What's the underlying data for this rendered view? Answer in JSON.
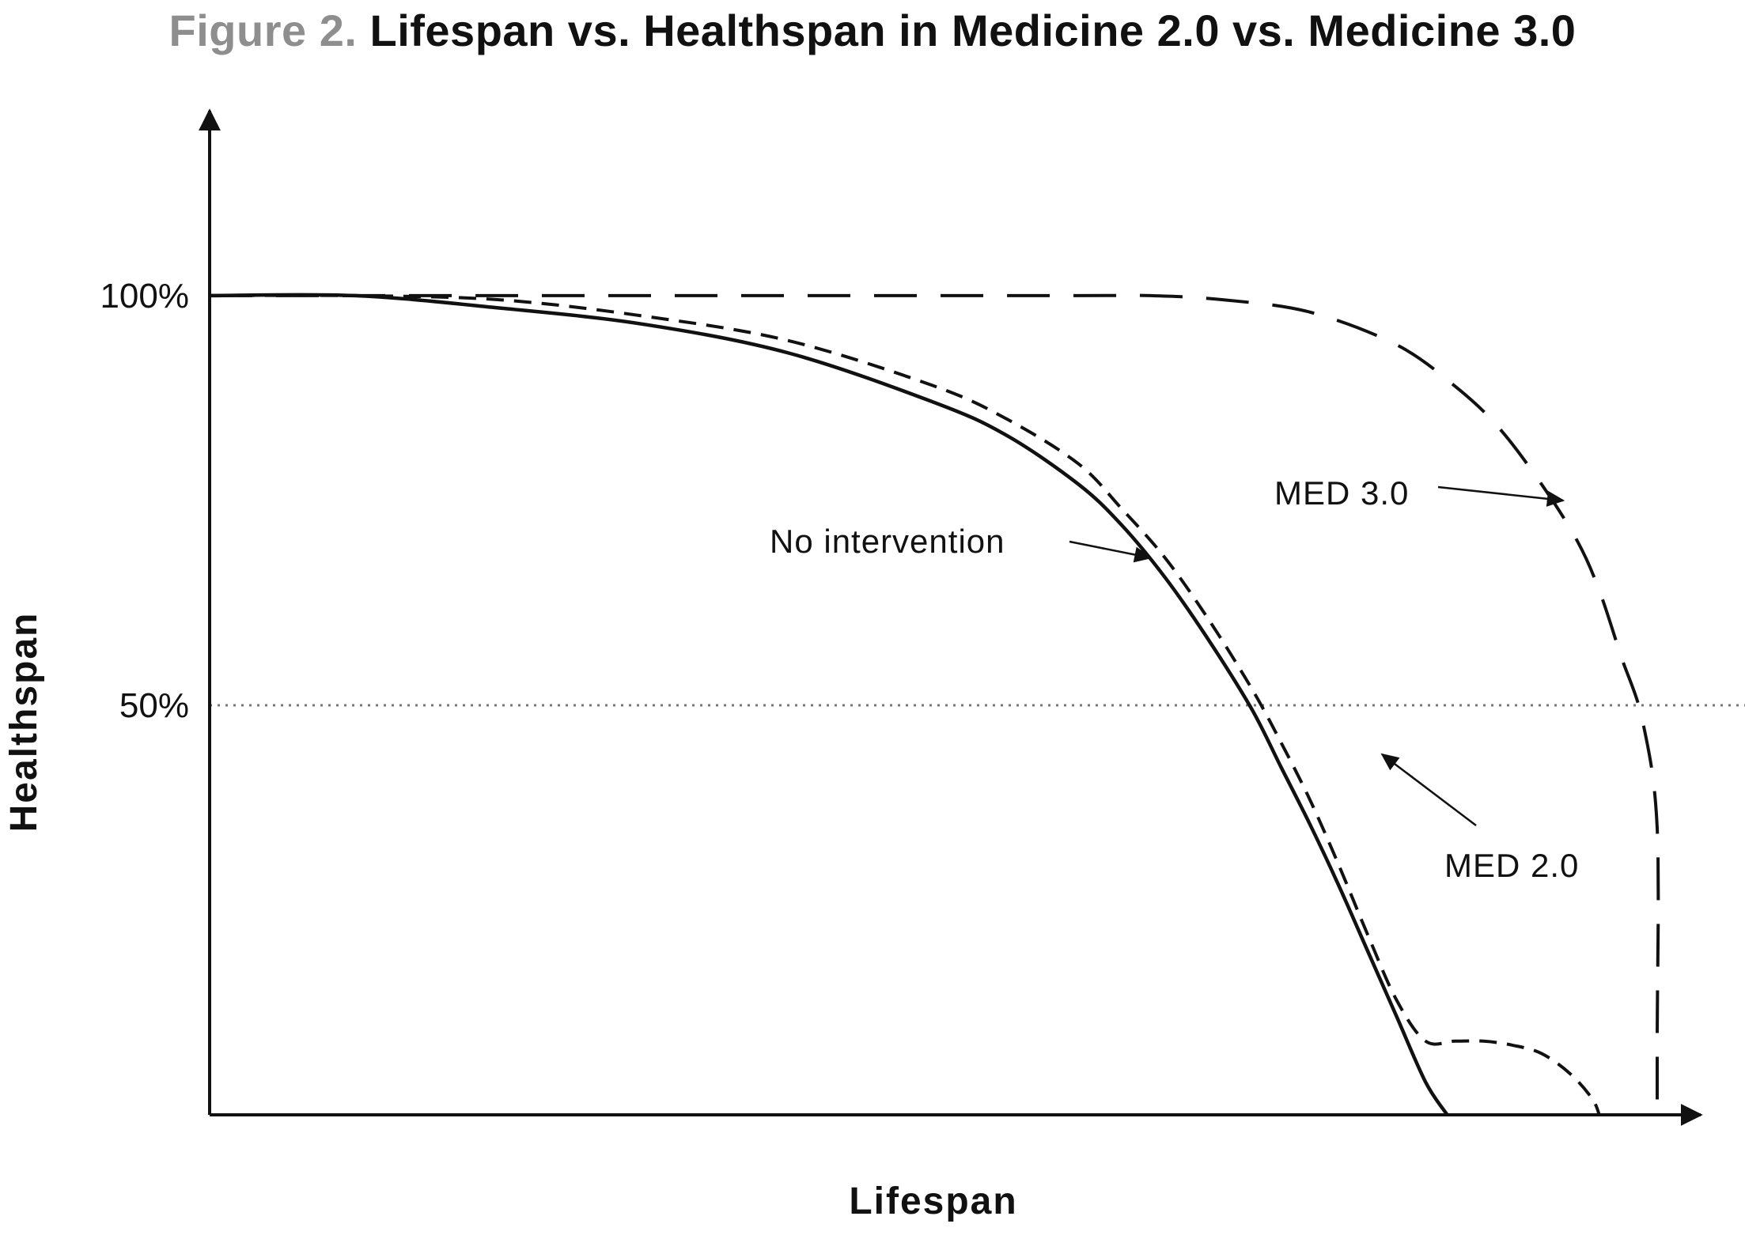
{
  "title": {
    "figure_label": "Figure 2.",
    "text": "Lifespan vs. Healthspan in Medicine 2.0 vs. Medicine 3.0"
  },
  "colors": {
    "title_label": "#8e8e8e",
    "ink": "#111111",
    "reference_line": "#777777"
  },
  "chart_data": {
    "type": "line",
    "title": "Lifespan vs. Healthspan in Medicine 2.0 vs. Medicine 3.0",
    "xlabel": "Lifespan",
    "ylabel": "Healthspan",
    "xlim": [
      0,
      100
    ],
    "ylim": [
      0,
      122
    ],
    "yticks": [
      {
        "value": 100,
        "label": "100%"
      },
      {
        "value": 50,
        "label": "50%"
      }
    ],
    "reference_lines": [
      {
        "axis": "y",
        "value": 50,
        "style": "dotted"
      }
    ],
    "grid": false,
    "legend": "none",
    "series": [
      {
        "name": "No intervention",
        "style": "solid",
        "x": [
          0,
          10,
          20,
          30,
          40,
          50,
          55,
          60,
          63,
          66,
          69,
          72,
          74,
          76,
          78,
          80,
          82,
          84,
          85.5
        ],
        "y": [
          100,
          100,
          98.5,
          96.5,
          93,
          87,
          83,
          77,
          72,
          65.6,
          58,
          49.5,
          42.5,
          35.5,
          28,
          20,
          12,
          4,
          0
        ]
      },
      {
        "name": "MED 2.0",
        "style": "dashed",
        "x": [
          0,
          10,
          20,
          30,
          40,
          50,
          55,
          60,
          63,
          66,
          69,
          72,
          74,
          76,
          78,
          80,
          82,
          84,
          86,
          88,
          90,
          92,
          94,
          95.5,
          96
        ],
        "y": [
          100,
          100,
          99.5,
          97.5,
          94.5,
          89,
          85,
          79.5,
          74,
          68,
          60.5,
          52,
          45.5,
          38.5,
          30.5,
          22,
          14,
          9,
          9,
          9,
          8.5,
          7.5,
          5,
          2,
          0
        ]
      },
      {
        "name": "MED 3.0",
        "style": "long-dashed",
        "x": [
          0,
          20,
          40,
          60,
          65,
          70,
          76,
          82,
          86,
          89,
          92,
          94.5,
          96,
          97.5,
          99,
          100,
          100,
          100
        ],
        "y": [
          100,
          100,
          100,
          100,
          100,
          99.5,
          98,
          94,
          89,
          84,
          77,
          70,
          64,
          56,
          48,
          35,
          10,
          0
        ]
      }
    ],
    "annotations": [
      {
        "text": "No intervention",
        "target_series": "No intervention",
        "arrow_to": [
          65,
          68
        ]
      },
      {
        "text": "MED 3.0",
        "target_series": "MED 3.0",
        "arrow_to": [
          93.5,
          75
        ]
      },
      {
        "text": "MED 2.0",
        "target_series": "MED 2.0",
        "arrow_to": [
          81,
          44
        ]
      }
    ]
  }
}
